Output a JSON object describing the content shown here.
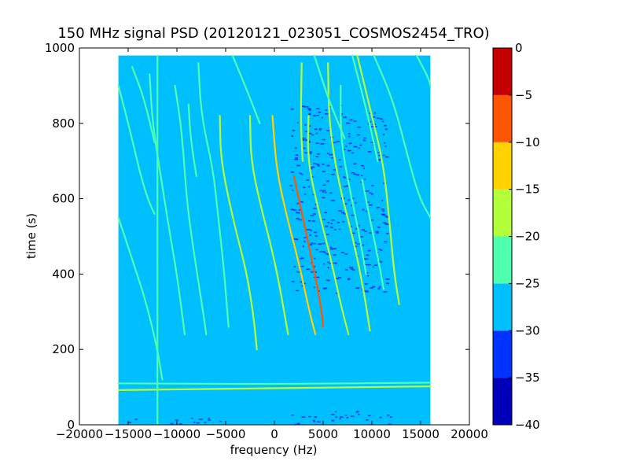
{
  "chart_data": {
    "type": "heatmap",
    "title": "150 MHz signal PSD (20120121_023051_COSMOS2454_TRO)",
    "xlabel": "frequency (Hz)",
    "ylabel": "time (s)",
    "xlim": [
      -20000,
      20000
    ],
    "ylim": [
      0,
      1000
    ],
    "x_ticks": [
      -20000,
      -15000,
      -10000,
      -5000,
      0,
      5000,
      10000,
      15000,
      20000
    ],
    "x_tick_labels": [
      "−20000",
      "−15000",
      "−10000",
      "−5000",
      "0",
      "5000",
      "10000",
      "15000",
      "20000"
    ],
    "y_ticks": [
      0,
      200,
      400,
      600,
      800,
      1000
    ],
    "y_tick_labels": [
      "0",
      "200",
      "400",
      "600",
      "800",
      "1000"
    ],
    "data_extent": {
      "x": [
        -16000,
        16000
      ],
      "y": [
        0,
        980
      ]
    },
    "background_level": -27.5,
    "colorbar": {
      "range": [
        -40,
        0
      ],
      "levels": [
        -40,
        -35,
        -30,
        -25,
        -20,
        -15,
        -10,
        -5,
        0
      ],
      "tick_labels": [
        "0",
        "−5",
        "−10",
        "−15",
        "−20",
        "−25",
        "−30",
        "−35",
        "−40"
      ],
      "colors": [
        "#0000bb",
        "#0033ff",
        "#00bfff",
        "#4dffae",
        "#b3ff39",
        "#ffd200",
        "#ff5400",
        "#c40000"
      ]
    },
    "grid": false,
    "traces": [
      {
        "points": [
          [
            2000,
            660
          ],
          [
            4000,
            420
          ],
          [
            4800,
            310
          ],
          [
            5000,
            260
          ]
        ],
        "level": -7
      },
      {
        "points": [
          [
            -200,
            820
          ],
          [
            200,
            680
          ],
          [
            1200,
            560
          ],
          [
            2600,
            420
          ],
          [
            3600,
            300
          ],
          [
            4200,
            240
          ]
        ],
        "level": -12
      },
      {
        "points": [
          [
            -2500,
            820
          ],
          [
            -2400,
            700
          ],
          [
            -1400,
            580
          ],
          [
            -200,
            460
          ],
          [
            600,
            360
          ],
          [
            1400,
            240
          ]
        ],
        "level": -18
      },
      {
        "points": [
          [
            -5600,
            820
          ],
          [
            -5500,
            700
          ],
          [
            -4200,
            540
          ],
          [
            -2800,
            400
          ],
          [
            -2100,
            280
          ],
          [
            -1800,
            200
          ]
        ],
        "level": -17
      },
      {
        "points": [
          [
            3500,
            820
          ],
          [
            3400,
            700
          ],
          [
            4600,
            560
          ],
          [
            5800,
            440
          ],
          [
            6800,
            320
          ],
          [
            7600,
            240
          ]
        ],
        "level": -17
      },
      {
        "points": [
          [
            5500,
            960
          ],
          [
            5600,
            800
          ],
          [
            6600,
            640
          ],
          [
            8200,
            480
          ],
          [
            9200,
            350
          ],
          [
            9800,
            250
          ]
        ],
        "level": -17
      },
      {
        "points": [
          [
            2800,
            960
          ],
          [
            2700,
            800
          ],
          [
            2900,
            700
          ]
        ],
        "level": -20
      },
      {
        "points": [
          [
            8500,
            980
          ],
          [
            10000,
            820
          ],
          [
            11200,
            690
          ],
          [
            11800,
            540
          ],
          [
            12300,
            400
          ],
          [
            12800,
            320
          ]
        ],
        "level": -20
      },
      {
        "points": [
          [
            10200,
            980
          ],
          [
            12200,
            860
          ],
          [
            13800,
            700
          ],
          [
            14900,
            600
          ],
          [
            16000,
            550
          ]
        ],
        "level": -22
      },
      {
        "points": [
          [
            -4300,
            980
          ],
          [
            -3000,
            900
          ],
          [
            -1500,
            800
          ]
        ],
        "level": -22
      },
      {
        "points": [
          [
            -10200,
            900
          ],
          [
            -9500,
            780
          ],
          [
            -9000,
            600
          ],
          [
            -8500,
            500
          ],
          [
            -7800,
            380
          ],
          [
            -7200,
            280
          ],
          [
            -7000,
            240
          ]
        ],
        "level": -22
      },
      {
        "points": [
          [
            -12800,
            930
          ],
          [
            -12500,
            800
          ],
          [
            -11600,
            650
          ],
          [
            -10800,
            520
          ],
          [
            -10000,
            400
          ],
          [
            -9200,
            240
          ]
        ],
        "level": -22
      },
      {
        "points": [
          [
            -16000,
            900
          ],
          [
            -14700,
            770
          ],
          [
            -13800,
            670
          ],
          [
            -13000,
            600
          ],
          [
            -12300,
            560
          ]
        ],
        "level": -22
      },
      {
        "points": [
          [
            -16000,
            550
          ],
          [
            -14600,
            440
          ],
          [
            -13200,
            330
          ],
          [
            -12000,
            200
          ],
          [
            -11500,
            120
          ]
        ],
        "level": -22
      },
      {
        "points": [
          [
            -14600,
            950
          ],
          [
            -13400,
            870
          ],
          [
            -12300,
            750
          ]
        ],
        "level": -22
      },
      {
        "points": [
          [
            -7800,
            960
          ],
          [
            -7500,
            820
          ],
          [
            -6300,
            680
          ],
          [
            -5800,
            560
          ],
          [
            -5200,
            420
          ],
          [
            -4700,
            260
          ]
        ],
        "level": -23
      },
      {
        "points": [
          [
            -8800,
            850
          ],
          [
            -8600,
            760
          ],
          [
            -8000,
            660
          ]
        ],
        "level": -24
      },
      {
        "points": [
          [
            6800,
            900
          ],
          [
            6800,
            760
          ],
          [
            7600,
            640
          ],
          [
            8600,
            520
          ],
          [
            9400,
            400
          ]
        ],
        "level": -24
      },
      {
        "points": [
          [
            4100,
            980
          ],
          [
            5600,
            860
          ],
          [
            7200,
            760
          ]
        ],
        "level": -24
      },
      {
        "points": [
          [
            8000,
            980
          ],
          [
            9600,
            820
          ],
          [
            10600,
            700
          ]
        ],
        "level": -24
      },
      {
        "points": [
          [
            9000,
            650
          ],
          [
            10000,
            520
          ],
          [
            10800,
            420
          ],
          [
            11200,
            360
          ]
        ],
        "level": -24
      },
      {
        "points": [
          [
            14600,
            980
          ],
          [
            15800,
            920
          ],
          [
            16000,
            900
          ]
        ],
        "level": -22
      },
      {
        "points": [
          [
            -16000,
            110
          ],
          [
            0,
            108
          ],
          [
            16000,
            112
          ]
        ],
        "level": -22
      },
      {
        "points": [
          [
            -16000,
            92
          ],
          [
            0,
            97
          ],
          [
            16000,
            102
          ]
        ],
        "level": -20
      },
      {
        "points": [
          [
            -12000,
            980
          ],
          [
            -12000,
            0
          ]
        ],
        "level": -24
      }
    ],
    "low_regions": [
      {
        "x": [
          1500,
          12000
        ],
        "y": [
          0,
          40
        ],
        "level": -34
      },
      {
        "x": [
          1500,
          11500
        ],
        "y": [
          350,
          850
        ],
        "level": -31
      },
      {
        "x": [
          -16000,
          -5000
        ],
        "y": [
          0,
          20
        ],
        "level": -31
      }
    ]
  }
}
